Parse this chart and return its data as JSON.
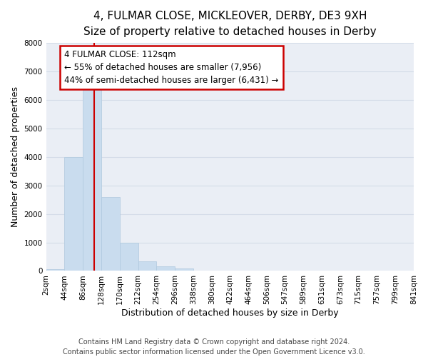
{
  "title_line1": "4, FULMAR CLOSE, MICKLEOVER, DERBY, DE3 9XH",
  "title_line2": "Size of property relative to detached houses in Derby",
  "xlabel": "Distribution of detached houses by size in Derby",
  "ylabel": "Number of detached properties",
  "bin_edges": [
    2,
    44,
    86,
    128,
    170,
    212,
    254,
    296,
    338,
    380,
    422,
    464,
    506,
    547,
    589,
    631,
    673,
    715,
    757,
    799,
    841
  ],
  "bar_heights": [
    60,
    4000,
    6600,
    2600,
    980,
    340,
    150,
    95,
    0,
    0,
    0,
    0,
    0,
    0,
    0,
    0,
    0,
    0,
    0,
    0
  ],
  "bar_color": "#c9dcee",
  "bar_edge_color": "#afc8de",
  "grid_color": "#d4dce8",
  "bg_color": "#eaeef5",
  "property_size": 112,
  "vline_color": "#cc0000",
  "annotation_text": "4 FULMAR CLOSE: 112sqm\n← 55% of detached houses are smaller (7,956)\n44% of semi-detached houses are larger (6,431) →",
  "annotation_box_color": "#cc0000",
  "ylim": [
    0,
    8000
  ],
  "yticks": [
    0,
    1000,
    2000,
    3000,
    4000,
    5000,
    6000,
    7000,
    8000
  ],
  "xtick_labels": [
    "2sqm",
    "44sqm",
    "86sqm",
    "128sqm",
    "170sqm",
    "212sqm",
    "254sqm",
    "296sqm",
    "338sqm",
    "380sqm",
    "422sqm",
    "464sqm",
    "506sqm",
    "547sqm",
    "589sqm",
    "631sqm",
    "673sqm",
    "715sqm",
    "757sqm",
    "799sqm",
    "841sqm"
  ],
  "footer_text": "Contains HM Land Registry data © Crown copyright and database right 2024.\nContains public sector information licensed under the Open Government Licence v3.0.",
  "title_fontsize": 11,
  "subtitle_fontsize": 9.5,
  "axis_label_fontsize": 9,
  "tick_fontsize": 7.5,
  "footer_fontsize": 7,
  "annot_fontsize": 8.5
}
